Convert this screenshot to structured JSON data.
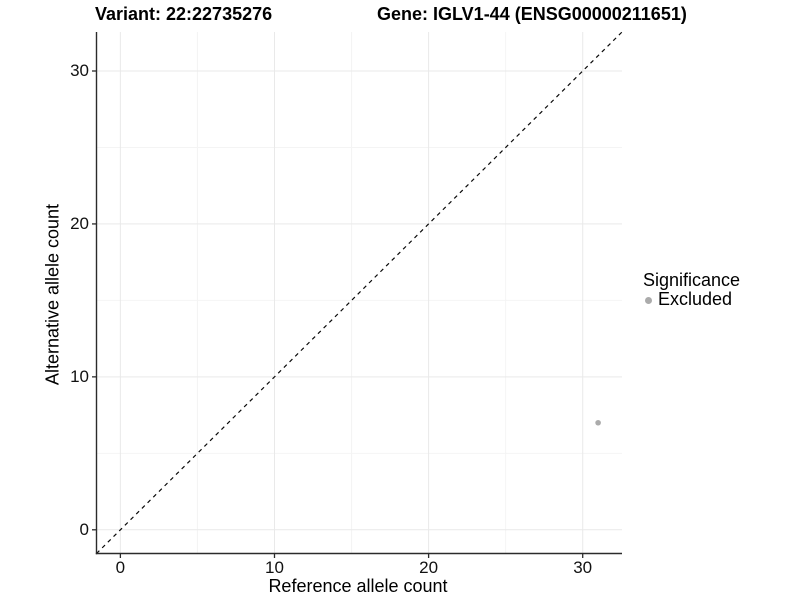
{
  "chart_data": {
    "type": "scatter",
    "title_left": "Variant: 22:22735276",
    "title_right": "Gene: IGLV1-44 (ENSG00000211651)",
    "xlabel": "Reference allele count",
    "ylabel": "Alternative allele count",
    "x_ticks": [
      0,
      10,
      20,
      30
    ],
    "y_ticks": [
      0,
      10,
      20,
      30
    ],
    "x_minor_ticks": [
      5,
      15,
      25
    ],
    "y_minor_ticks": [
      5,
      15,
      25
    ],
    "xlim": [
      -1.55,
      32.55
    ],
    "ylim": [
      -1.55,
      32.55
    ],
    "grid": "major+minor",
    "legend_position": "right-middle",
    "legend": {
      "title": "Significance",
      "entries": [
        {
          "label": "Excluded",
          "marker": "circle",
          "color": "#ababab"
        }
      ]
    },
    "reference_line": {
      "type": "dashed",
      "equation": "y = x",
      "color": "#0a0a0a"
    },
    "series": [
      {
        "name": "Excluded",
        "color": "#ababab",
        "points": [
          {
            "x": 31,
            "y": 7
          }
        ]
      }
    ],
    "colors": {
      "background": "#ffffff",
      "grid_major": "#e9e9e9",
      "grid_minor": "#f4f4f4",
      "axis": "#2b2b2b",
      "text": "#000000"
    }
  }
}
